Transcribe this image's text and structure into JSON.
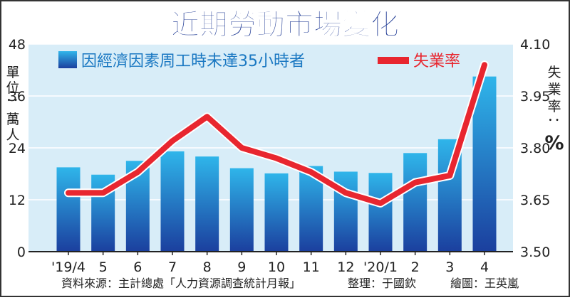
{
  "chart_data": {
    "type": "bar",
    "title": "近期勞動市場變化",
    "categories": [
      "'19/4",
      "5",
      "6",
      "7",
      "8",
      "9",
      "10",
      "11",
      "12",
      "'20/1",
      "2",
      "3",
      "4"
    ],
    "series": [
      {
        "name": "因經濟因素周工時未達35小時者",
        "type": "bar",
        "axis": "left",
        "values": [
          19.5,
          17.8,
          21.0,
          23.2,
          22.0,
          19.3,
          18.1,
          19.8,
          18.5,
          18.2,
          22.8,
          26.0,
          40.5
        ]
      },
      {
        "name": "失業率",
        "type": "line",
        "axis": "right",
        "values": [
          3.67,
          3.67,
          3.73,
          3.82,
          3.89,
          3.8,
          3.77,
          3.73,
          3.67,
          3.64,
          3.7,
          3.72,
          4.04
        ]
      }
    ],
    "y_left": {
      "label": "單位：萬人",
      "min": 0,
      "max": 48,
      "ticks": [
        "0",
        "12",
        "24",
        "36",
        "48"
      ]
    },
    "y_right": {
      "label": "失業率：%",
      "min": 3.5,
      "max": 4.1,
      "ticks": [
        "3.50",
        "3.65",
        "3.80",
        "3.95",
        "4.10"
      ]
    },
    "grid": true,
    "legend_position": "top",
    "source": "資料來源：主計總處「人力資源調查統計月報」",
    "credit_compile": "整理：于國欽",
    "credit_draw": "繪圖：王英嵐",
    "colors": {
      "panel": "#d8edf8",
      "bar_top": "#2fb5ea",
      "bar_bottom": "#1b3f9e",
      "line": "#e8262f",
      "title": "#1f3a94",
      "grid": "#ffffff"
    }
  }
}
